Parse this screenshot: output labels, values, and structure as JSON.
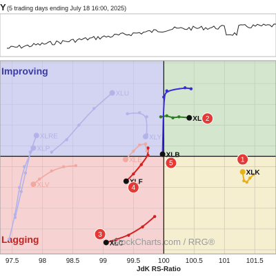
{
  "header": {
    "title_fragment": "Y",
    "subtitle": "(5 trading days ending July 18 16:00, 2025)"
  },
  "watermark": "StockCharts.com / RRG®",
  "colors": {
    "improving_bg": "#d3d3f2",
    "leading_bg": "#d4e6cd",
    "weakening_bg": "#f6efcf",
    "lagging_bg": "#f6d2d2",
    "grid": "#c9c9c9",
    "axis_line": "#111111",
    "xli": "#2e7d22",
    "xlb": "#3a2bd6",
    "xlk": "#e6b21c",
    "xlf": "#d42020",
    "xlc": "#d42020",
    "faded_blue": "#b3b3ea",
    "faded_red": "#f0a8a0",
    "badge": "#e53935"
  },
  "chart_data": {
    "type": "scatter",
    "title": "",
    "xlabel": "JdK RS-Ratio",
    "ylabel": "",
    "x_ticks": [
      "97.5",
      "98",
      "98.5",
      "99",
      "99.5",
      "100",
      "100.5",
      "101",
      "101.5"
    ],
    "xlim": [
      97.3,
      101.85
    ],
    "ylim": [
      95.3,
      104.6
    ],
    "center": [
      100,
      100
    ],
    "grid": true,
    "quadrant_labels": {
      "improving": "Improving",
      "lagging": "Lagging"
    },
    "series": [
      {
        "name": "XLI",
        "color": "xli",
        "highlight": true,
        "points": [
          [
            99.95,
            101.9
          ],
          [
            100.05,
            101.95
          ],
          [
            100.15,
            101.85
          ],
          [
            100.25,
            101.9
          ],
          [
            100.42,
            101.85
          ]
        ]
      },
      {
        "name": "XLB",
        "color": "xlb",
        "highlight": true,
        "points": [
          [
            100.45,
            103.25
          ],
          [
            100.35,
            103.3
          ],
          [
            100.05,
            103.15
          ],
          [
            100.0,
            102.85
          ],
          [
            99.98,
            100.1
          ]
        ]
      },
      {
        "name": "XLK",
        "color": "xlk",
        "highlight": true,
        "points": [
          [
            101.48,
            99.12
          ],
          [
            101.42,
            98.95
          ],
          [
            101.37,
            98.75
          ],
          [
            101.32,
            98.82
          ],
          [
            101.3,
            99.25
          ]
        ]
      },
      {
        "name": "XLF",
        "color": "xlf",
        "highlight": true,
        "points": [
          [
            99.74,
            100.4
          ],
          [
            99.74,
            100.05
          ],
          [
            99.63,
            99.6
          ],
          [
            99.5,
            99.15
          ],
          [
            99.38,
            98.8
          ]
        ]
      },
      {
        "name": "XLC",
        "color": "xlc",
        "highlight": true,
        "points": [
          [
            99.85,
            97.1
          ],
          [
            99.65,
            96.6
          ],
          [
            99.42,
            96.2
          ],
          [
            99.22,
            96.0
          ],
          [
            99.05,
            95.85
          ]
        ]
      },
      {
        "name": "XLU",
        "color": "faded_blue",
        "highlight": false,
        "points": [
          [
            98.15,
            100.2
          ],
          [
            98.4,
            100.8
          ],
          [
            98.6,
            101.5
          ],
          [
            98.85,
            102.3
          ],
          [
            99.15,
            103.05
          ]
        ]
      },
      {
        "name": "XLY",
        "color": "faded_blue",
        "highlight": false,
        "points": [
          [
            99.4,
            102.05
          ],
          [
            99.6,
            102.1
          ],
          [
            99.72,
            101.9
          ],
          [
            99.72,
            101.05
          ],
          [
            99.7,
            100.95
          ]
        ]
      },
      {
        "name": "XLRE",
        "color": "faded_blue",
        "highlight": false,
        "points": [
          [
            97.55,
            97.05
          ],
          [
            97.65,
            98.3
          ],
          [
            97.72,
            99.2
          ],
          [
            97.8,
            100.2
          ],
          [
            97.9,
            101.0
          ]
        ]
      },
      {
        "name": "XLP",
        "color": "faded_blue",
        "highlight": false,
        "points": [
          [
            97.45,
            96.0
          ],
          [
            97.55,
            97.2
          ],
          [
            97.62,
            98.5
          ],
          [
            97.7,
            99.5
          ],
          [
            97.85,
            100.4
          ]
        ]
      },
      {
        "name": "XLE",
        "color": "faded_red",
        "highlight": false,
        "points": [
          [
            99.72,
            100.25
          ],
          [
            99.7,
            100.6
          ],
          [
            99.6,
            100.55
          ],
          [
            99.5,
            100.25
          ],
          [
            99.37,
            99.85
          ]
        ]
      },
      {
        "name": "XLV",
        "color": "faded_red",
        "highlight": false,
        "points": [
          [
            98.55,
            99.55
          ],
          [
            98.35,
            99.5
          ],
          [
            98.15,
            99.3
          ],
          [
            97.95,
            98.9
          ],
          [
            97.85,
            98.65
          ]
        ]
      }
    ],
    "markers": [
      {
        "label": "1",
        "x": 101.3,
        "y": 99.85
      },
      {
        "label": "2",
        "x": 100.72,
        "y": 101.82
      },
      {
        "label": "3",
        "x": 98.95,
        "y": 96.25
      },
      {
        "label": "4",
        "x": 99.5,
        "y": 98.5
      },
      {
        "label": "5",
        "x": 100.12,
        "y": 99.68
      }
    ]
  }
}
